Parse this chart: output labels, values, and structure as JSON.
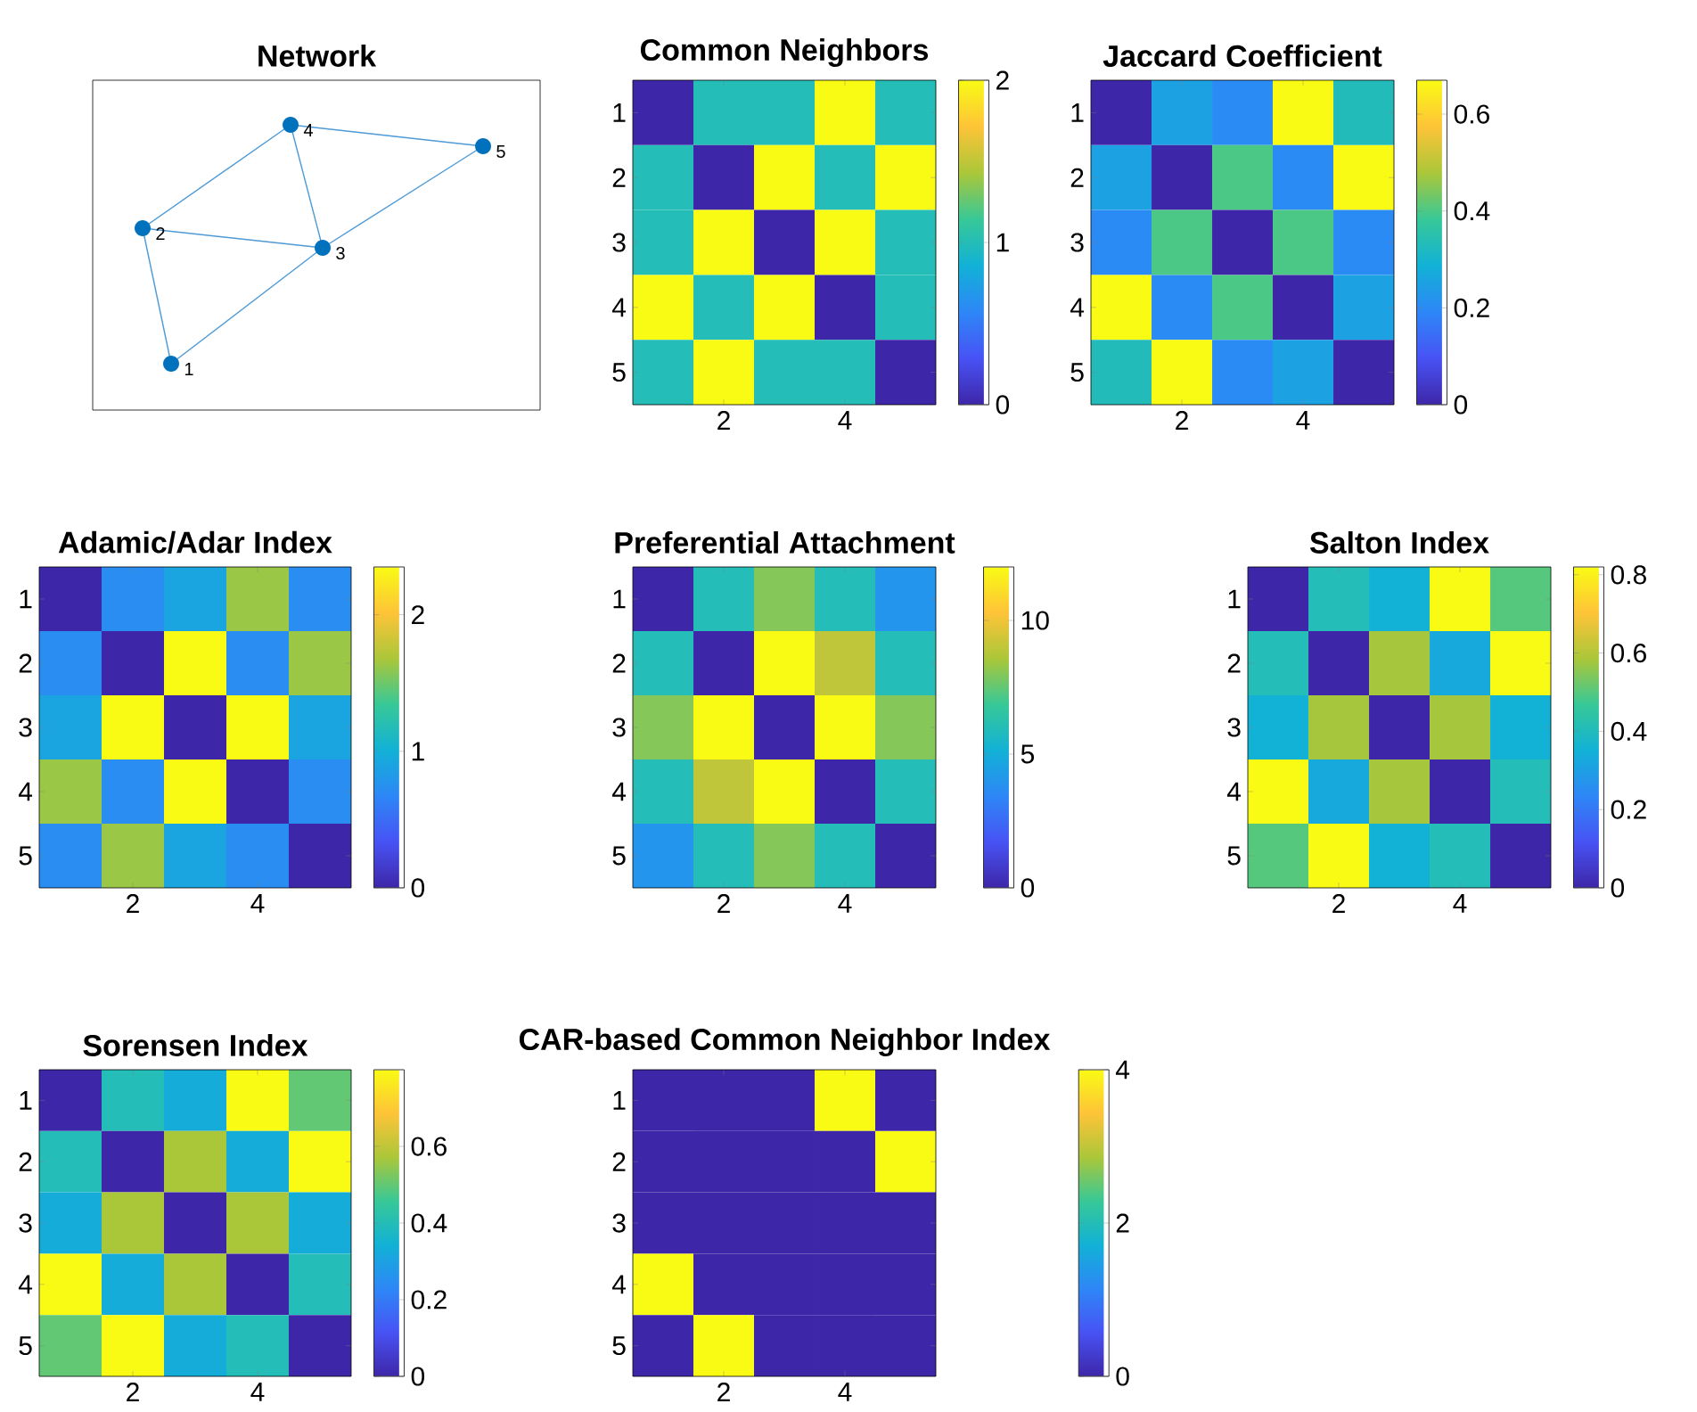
{
  "chart_data": [
    {
      "type": "other",
      "title": "Network",
      "annotations": [
        "1",
        "2",
        "3",
        "4",
        "5"
      ]
    },
    {
      "type": "heatmap",
      "title": "Common Neighbors",
      "categories": [
        null,
        "2",
        null,
        "4",
        null
      ],
      "y_categories": [
        "1",
        "2",
        "3",
        "4",
        "5"
      ],
      "cells": [
        [
          0,
          1,
          1,
          2,
          1
        ],
        [
          1,
          0,
          2,
          1,
          2
        ],
        [
          1,
          2,
          0,
          2,
          1
        ],
        [
          2,
          1,
          2,
          0,
          1
        ],
        [
          1,
          2,
          1,
          1,
          0
        ]
      ],
      "clim": [
        0,
        2
      ],
      "cticks": [
        0,
        1,
        2
      ]
    },
    {
      "type": "heatmap",
      "title": "Jaccard Coefficient",
      "categories": [
        null,
        "2",
        null,
        "4",
        null
      ],
      "y_categories": [
        "1",
        "2",
        "3",
        "4",
        "5"
      ],
      "cells": [
        [
          0,
          0.25,
          0.2,
          0.67,
          0.33
        ],
        [
          0.25,
          0,
          0.4,
          0.2,
          0.67
        ],
        [
          0.2,
          0.4,
          0,
          0.4,
          0.2
        ],
        [
          0.67,
          0.2,
          0.4,
          0,
          0.25
        ],
        [
          0.33,
          0.67,
          0.2,
          0.25,
          0
        ]
      ],
      "clim": [
        0,
        0.67
      ],
      "cticks": [
        0,
        0.2,
        0.4,
        0.6
      ]
    },
    {
      "type": "heatmap",
      "title": "Adamic/Adar Index",
      "categories": [
        null,
        "2",
        null,
        "4",
        null
      ],
      "y_categories": [
        "1",
        "2",
        "3",
        "4",
        "5"
      ],
      "cells": [
        [
          0,
          0.72,
          0.91,
          1.63,
          0.72
        ],
        [
          0.72,
          0,
          2.35,
          0.72,
          1.63
        ],
        [
          0.91,
          2.35,
          0,
          2.35,
          0.91
        ],
        [
          1.63,
          0.72,
          2.35,
          0,
          0.72
        ],
        [
          0.72,
          1.63,
          0.91,
          0.72,
          0
        ]
      ],
      "clim": [
        0,
        2.35
      ],
      "cticks": [
        0,
        1,
        2
      ]
    },
    {
      "type": "heatmap",
      "title": "Preferential Attachment",
      "categories": [
        null,
        "2",
        null,
        "4",
        null
      ],
      "y_categories": [
        "1",
        "2",
        "3",
        "4",
        "5"
      ],
      "cells": [
        [
          0,
          6,
          8,
          6,
          4
        ],
        [
          6,
          0,
          12,
          9,
          6
        ],
        [
          8,
          12,
          0,
          12,
          8
        ],
        [
          6,
          9,
          12,
          0,
          6
        ],
        [
          4,
          6,
          8,
          6,
          0
        ]
      ],
      "clim": [
        0,
        12
      ],
      "cticks": [
        0,
        5,
        10
      ]
    },
    {
      "type": "heatmap",
      "title": "Salton Index",
      "categories": [
        null,
        "2",
        null,
        "4",
        null
      ],
      "y_categories": [
        "1",
        "2",
        "3",
        "4",
        "5"
      ],
      "cells": [
        [
          0,
          0.41,
          0.35,
          0.82,
          0.5
        ],
        [
          0.41,
          0,
          0.58,
          0.33,
          0.82
        ],
        [
          0.35,
          0.58,
          0,
          0.58,
          0.35
        ],
        [
          0.82,
          0.33,
          0.58,
          0,
          0.41
        ],
        [
          0.5,
          0.82,
          0.35,
          0.41,
          0
        ]
      ],
      "clim": [
        0,
        0.82
      ],
      "cticks": [
        0,
        0.2,
        0.4,
        0.6,
        0.8
      ]
    },
    {
      "type": "heatmap",
      "title": "Sorensen Index",
      "categories": [
        null,
        "2",
        null,
        "4",
        null
      ],
      "y_categories": [
        "1",
        "2",
        "3",
        "4",
        "5"
      ],
      "cells": [
        [
          0,
          0.4,
          0.33,
          0.8,
          0.5
        ],
        [
          0.4,
          0,
          0.57,
          0.33,
          0.8
        ],
        [
          0.33,
          0.57,
          0,
          0.57,
          0.33
        ],
        [
          0.8,
          0.33,
          0.57,
          0,
          0.4
        ],
        [
          0.5,
          0.8,
          0.33,
          0.4,
          0
        ]
      ],
      "clim": [
        0,
        0.8
      ],
      "cticks": [
        0,
        0.2,
        0.4,
        0.6
      ]
    },
    {
      "type": "heatmap",
      "title": "CAR-based Common Neighbor Index",
      "categories": [
        null,
        "2",
        null,
        "4",
        null
      ],
      "y_categories": [
        "1",
        "2",
        "3",
        "4",
        "5"
      ],
      "cells": [
        [
          0,
          0,
          0,
          4,
          0
        ],
        [
          0,
          0,
          0,
          0,
          4
        ],
        [
          0,
          0,
          0,
          0,
          0
        ],
        [
          4,
          0,
          0,
          0,
          0
        ],
        [
          0,
          4,
          0,
          0,
          0
        ]
      ],
      "clim": [
        0,
        4
      ],
      "cticks": [
        0,
        2,
        4
      ]
    }
  ]
}
